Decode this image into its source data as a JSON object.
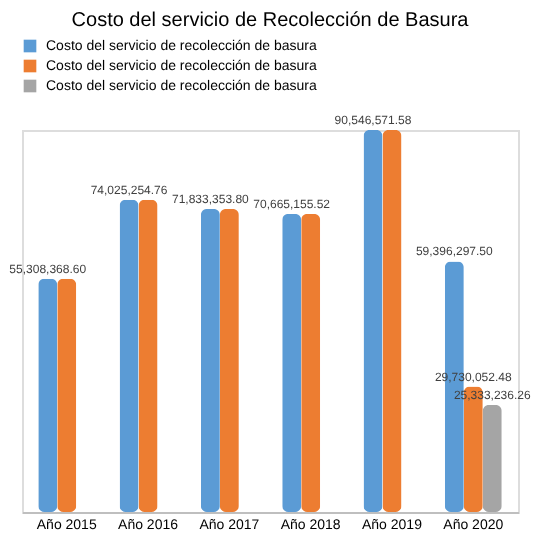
{
  "chart_data": {
    "type": "bar",
    "title": "Costo del servicio de Recolección de Basura",
    "categories": [
      "Año 2015",
      "Año 2016",
      "Año 2017",
      "Año 2018",
      "Año 2019",
      "Año 2020"
    ],
    "series": [
      {
        "name": "Costo del servicio de recolección de basura",
        "color": "#5b9bd5",
        "values": [
          55308368.6,
          74025254.76,
          71833353.8,
          70665155.52,
          90546571.58,
          59396297.5
        ],
        "value_labels": [
          "55,308,368.60",
          "74,025,254.76",
          "71,833,353.80",
          "70,665,155.52",
          "90,546,571.58",
          "59,396,297.50"
        ]
      },
      {
        "name": "Costo del servicio de recolección de basura",
        "color": "#ed7d31",
        "values": [
          55308368.6,
          74025254.76,
          71833353.8,
          70665155.52,
          90546571.58,
          29730052.48
        ],
        "value_labels": [
          null,
          null,
          null,
          null,
          null,
          "29,730,052.48"
        ]
      },
      {
        "name": "Costo del servicio de recolección de basura",
        "color": "#a5a5a5",
        "values": [
          null,
          null,
          null,
          null,
          null,
          25333236.26
        ],
        "value_labels": [
          null,
          null,
          null,
          null,
          null,
          "25,333,236.26"
        ]
      }
    ],
    "legend": "top",
    "grid": false
  }
}
